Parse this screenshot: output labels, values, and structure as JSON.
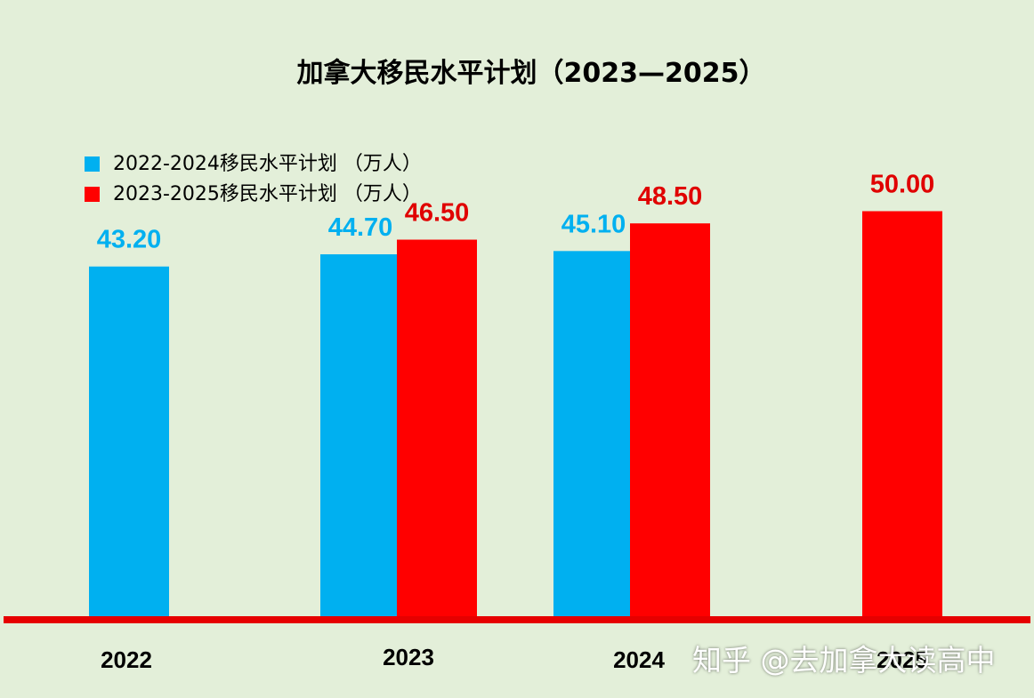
{
  "colors": {
    "background": "#e3efd9",
    "series1": "#00b0f0",
    "series2": "#ff0000",
    "series2_label": "#e00000",
    "axis": "#e60000",
    "text": "#000000"
  },
  "chart_data": {
    "type": "bar",
    "title": "加拿大移民水平计划（2023—2025）",
    "xlabel": "",
    "ylabel": "",
    "categories": [
      "2022",
      "2023",
      "2024",
      "2025"
    ],
    "series": [
      {
        "name": "2022-2024移民水平计划 （万人）",
        "values": [
          43.2,
          44.7,
          45.1,
          null
        ],
        "labels": [
          "43.20",
          "44.70",
          "45.10",
          ""
        ]
      },
      {
        "name": "2023-2025移民水平计划 （万人）",
        "values": [
          null,
          46.5,
          48.5,
          50.0
        ],
        "labels": [
          "",
          "46.50",
          "48.50",
          "50.00"
        ]
      }
    ],
    "grid": false,
    "legend_position": "top-left"
  },
  "watermark": "知乎 @去加拿大读高中"
}
